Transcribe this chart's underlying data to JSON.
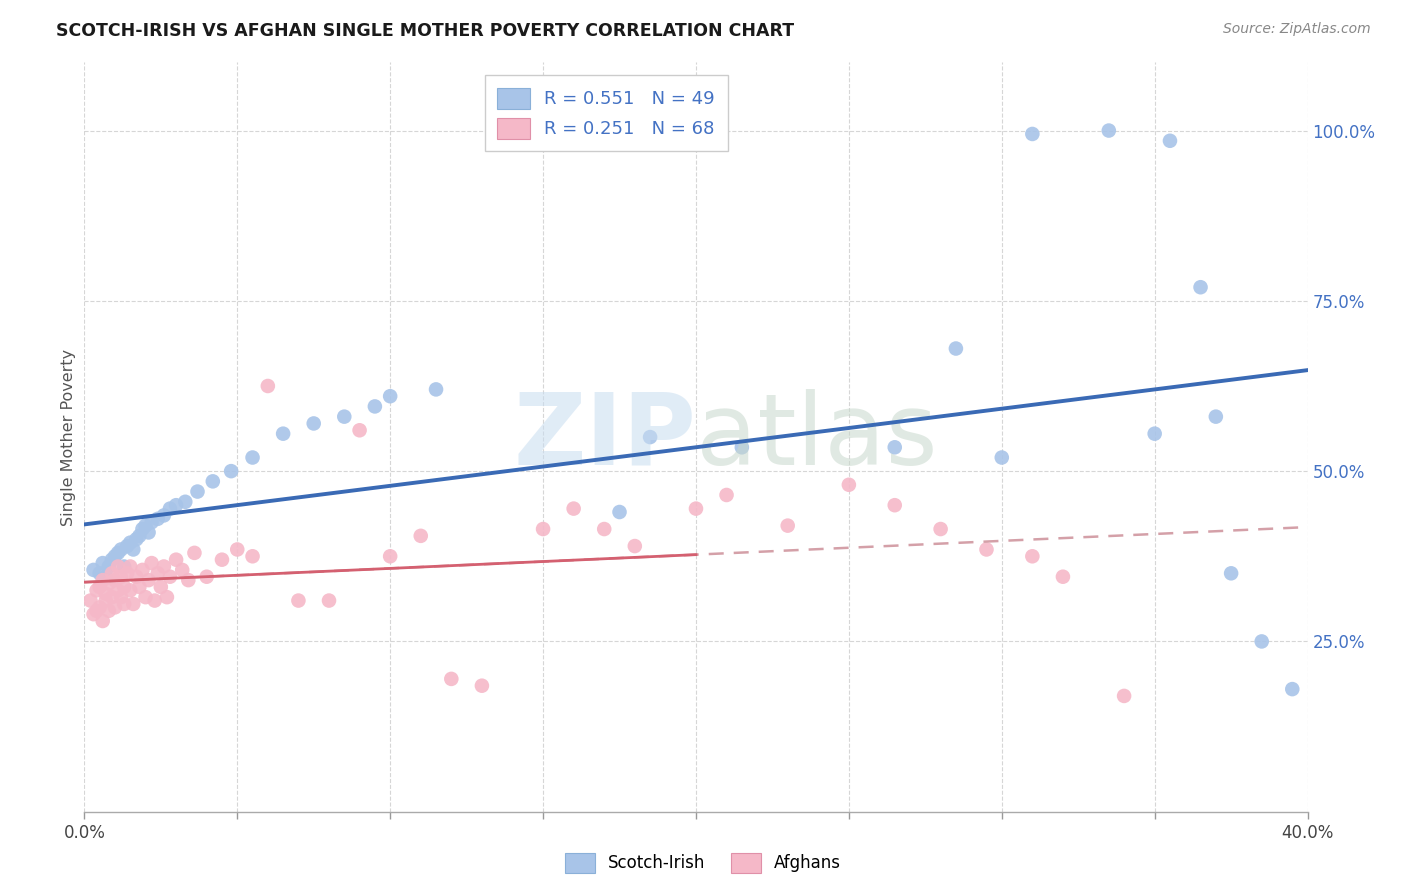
{
  "title": "SCOTCH-IRISH VS AFGHAN SINGLE MOTHER POVERTY CORRELATION CHART",
  "source": "Source: ZipAtlas.com",
  "ylabel": "Single Mother Poverty",
  "x_range": [
    0.0,
    0.4
  ],
  "y_range": [
    0.0,
    1.1
  ],
  "y_ticks": [
    0.25,
    0.5,
    0.75,
    1.0
  ],
  "y_tick_labels": [
    "25.0%",
    "50.0%",
    "75.0%",
    "100.0%"
  ],
  "x_ticks": [
    0.0,
    0.05,
    0.1,
    0.15,
    0.2,
    0.25,
    0.3,
    0.35,
    0.4
  ],
  "legend_label1": "R = 0.551   N = 49",
  "legend_label2": "R = 0.251   N = 68",
  "legend_color1": "#a8c4e8",
  "legend_color2": "#f5b8c8",
  "scatter_color1": "#a8c4e8",
  "scatter_color2": "#f5b8c8",
  "line_color1": "#3a6ab5",
  "line_color2_dashed": "#d4a0a8",
  "line_color2_solid": "#d46070",
  "watermark_zip": "ZIP",
  "watermark_atlas": "atlas",
  "bottom_label1": "Scotch-Irish",
  "bottom_label2": "Afghans",
  "scotch_irish_x": [
    0.003,
    0.005,
    0.006,
    0.007,
    0.008,
    0.009,
    0.01,
    0.011,
    0.012,
    0.013,
    0.014,
    0.015,
    0.016,
    0.017,
    0.018,
    0.019,
    0.02,
    0.021,
    0.022,
    0.024,
    0.026,
    0.028,
    0.03,
    0.033,
    0.037,
    0.042,
    0.048,
    0.055,
    0.065,
    0.075,
    0.085,
    0.095,
    0.1,
    0.115,
    0.175,
    0.185,
    0.215,
    0.265,
    0.285,
    0.3,
    0.31,
    0.335,
    0.35,
    0.355,
    0.365,
    0.37,
    0.375,
    0.385,
    0.395
  ],
  "scotch_irish_y": [
    0.355,
    0.35,
    0.365,
    0.345,
    0.36,
    0.37,
    0.375,
    0.38,
    0.385,
    0.36,
    0.39,
    0.395,
    0.385,
    0.4,
    0.405,
    0.415,
    0.42,
    0.41,
    0.425,
    0.43,
    0.435,
    0.445,
    0.45,
    0.455,
    0.47,
    0.485,
    0.5,
    0.52,
    0.555,
    0.57,
    0.58,
    0.595,
    0.61,
    0.62,
    0.44,
    0.55,
    0.535,
    0.535,
    0.68,
    0.52,
    0.995,
    1.0,
    0.555,
    0.985,
    0.77,
    0.58,
    0.35,
    0.25,
    0.18
  ],
  "afghan_x": [
    0.002,
    0.003,
    0.004,
    0.004,
    0.005,
    0.005,
    0.006,
    0.006,
    0.007,
    0.007,
    0.008,
    0.008,
    0.009,
    0.009,
    0.01,
    0.01,
    0.011,
    0.011,
    0.012,
    0.012,
    0.013,
    0.013,
    0.014,
    0.015,
    0.015,
    0.016,
    0.017,
    0.018,
    0.019,
    0.02,
    0.021,
    0.022,
    0.023,
    0.024,
    0.025,
    0.026,
    0.027,
    0.028,
    0.03,
    0.032,
    0.034,
    0.036,
    0.04,
    0.045,
    0.05,
    0.055,
    0.06,
    0.07,
    0.08,
    0.09,
    0.1,
    0.11,
    0.12,
    0.13,
    0.15,
    0.16,
    0.17,
    0.18,
    0.2,
    0.21,
    0.23,
    0.25,
    0.265,
    0.28,
    0.295,
    0.31,
    0.32,
    0.34
  ],
  "afghan_y": [
    0.31,
    0.29,
    0.295,
    0.325,
    0.3,
    0.33,
    0.28,
    0.34,
    0.31,
    0.32,
    0.335,
    0.295,
    0.35,
    0.315,
    0.34,
    0.3,
    0.325,
    0.36,
    0.315,
    0.345,
    0.33,
    0.305,
    0.35,
    0.325,
    0.36,
    0.305,
    0.345,
    0.33,
    0.355,
    0.315,
    0.34,
    0.365,
    0.31,
    0.35,
    0.33,
    0.36,
    0.315,
    0.345,
    0.37,
    0.355,
    0.34,
    0.38,
    0.345,
    0.37,
    0.385,
    0.375,
    0.625,
    0.31,
    0.31,
    0.56,
    0.375,
    0.405,
    0.195,
    0.185,
    0.415,
    0.445,
    0.415,
    0.39,
    0.445,
    0.465,
    0.42,
    0.48,
    0.45,
    0.415,
    0.385,
    0.375,
    0.345,
    0.17
  ]
}
